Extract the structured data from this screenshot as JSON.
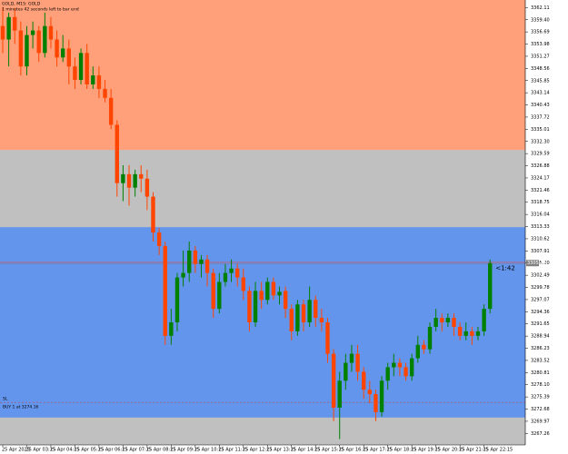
{
  "chart_data": {
    "type": "candlestick",
    "title": "GOLD, M15: GOLD",
    "subtitle": "1 minutes 42 seconds left to bar end",
    "countdown": "<1:42",
    "categories": [
      "25 Apr 2025",
      null,
      null,
      null,
      "25 Apr 03:15",
      null,
      null,
      null,
      "25 Apr 04:15",
      null,
      null,
      null,
      "25 Apr 05:15",
      null,
      null,
      null,
      "25 Apr 06:15",
      null,
      null,
      null,
      "25 Apr 07:15",
      null,
      null,
      null,
      "25 Apr 08:15",
      null,
      null,
      null,
      "25 Apr 09:15",
      null,
      null,
      null,
      "25 Apr 10:15",
      null,
      null,
      null,
      "25 Apr 11:15",
      null,
      null,
      null,
      "25 Apr 12:15",
      null,
      null,
      null,
      "25 Apr 13:15",
      null,
      null,
      null,
      "25 Apr 14:15",
      null,
      null,
      null,
      "25 Apr 15:15",
      null,
      null,
      null,
      "25 Apr 16:15",
      null,
      null,
      null,
      "25 Apr 17:15",
      null,
      null,
      null,
      "25 Apr 18:15",
      null,
      null,
      null,
      "25 Apr 19:15",
      null,
      null,
      null,
      "25 Apr 20:15",
      null,
      null,
      null,
      "25 Apr 21:15",
      null,
      null,
      null,
      "25 Apr 22:15",
      null
    ],
    "open": [
      3358,
      3355,
      3360,
      3357,
      3349,
      3356,
      3357,
      3352,
      3358,
      3355,
      3351,
      3353,
      3349,
      3346,
      3352,
      3345,
      3347,
      3344,
      3342,
      3336,
      3323,
      3325,
      3322,
      3325,
      3324,
      3320,
      3312,
      3309,
      3289,
      3292,
      3302,
      3303,
      3308,
      3305,
      3306,
      3303,
      3295,
      3301,
      3303,
      3304,
      3302,
      3299,
      3292,
      3299,
      3297,
      3301,
      3298,
      3299,
      3295,
      3290,
      3296,
      3292,
      3297,
      3293,
      3292,
      3285,
      3273,
      3279,
      3283,
      3285,
      3281,
      3277,
      3276,
      3272,
      3279,
      3282,
      3283,
      3282,
      3280,
      3284,
      3287,
      3286,
      3291,
      3293,
      3292,
      3293,
      3291,
      3289,
      3290,
      3289,
      3290,
      3295
    ],
    "close": [
      3355,
      3360,
      3357,
      3349,
      3356,
      3357,
      3352,
      3358,
      3355,
      3351,
      3353,
      3349,
      3346,
      3352,
      3345,
      3347,
      3344,
      3342,
      3336,
      3323,
      3325,
      3322,
      3325,
      3324,
      3320,
      3312,
      3309,
      3289,
      3292,
      3302,
      3303,
      3308,
      3305,
      3306,
      3303,
      3295,
      3301,
      3303,
      3304,
      3302,
      3299,
      3292,
      3299,
      3297,
      3301,
      3298,
      3298.8,
      3295,
      3290,
      3296,
      3292,
      3297,
      3293,
      3292,
      3285,
      3273,
      3279,
      3283,
      3285,
      3281,
      3277,
      3276,
      3272,
      3279,
      3282,
      3283,
      3282,
      3280,
      3284,
      3287,
      3286,
      3291,
      3293,
      3292,
      3293,
      3291,
      3289,
      3290,
      3289,
      3290,
      3295,
      3305.2
    ],
    "high": [
      3362,
      3361,
      3362,
      3359,
      3358,
      3359,
      3358,
      3361,
      3360,
      3357,
      3356,
      3355,
      3351,
      3353,
      3354,
      3349,
      3349,
      3346,
      3344,
      3337,
      3327,
      3327,
      3326,
      3327,
      3326,
      3321,
      3313,
      3310,
      3295,
      3303,
      3308,
      3310,
      3309,
      3307,
      3307,
      3304,
      3303,
      3305,
      3306,
      3305,
      3304,
      3300,
      3301,
      3301,
      3302,
      3302,
      3300,
      3300,
      3296,
      3297,
      3297,
      3300,
      3298,
      3295,
      3293,
      3286,
      3281,
      3285,
      3287,
      3287,
      3282,
      3279,
      3277,
      3280,
      3283,
      3285,
      3284,
      3283,
      3285,
      3289,
      3288,
      3292,
      3295,
      3294,
      3294,
      3294,
      3292,
      3292,
      3291,
      3291,
      3296,
      3306
    ],
    "low": [
      3352,
      3349,
      3354,
      3347,
      3347,
      3353,
      3350,
      3351,
      3353,
      3349,
      3350,
      3345,
      3344,
      3345,
      3344,
      3344,
      3342,
      3341,
      3335,
      3320,
      3319,
      3318,
      3320,
      3321,
      3317,
      3310,
      3307,
      3287,
      3287,
      3290,
      3300,
      3301,
      3303,
      3302,
      3300,
      3293,
      3294,
      3300,
      3301,
      3300,
      3297,
      3290,
      3291,
      3295,
      3296,
      3297,
      3296,
      3293,
      3288,
      3289,
      3290,
      3291,
      3291,
      3290,
      3283,
      3270,
      3266,
      3277,
      3281,
      3279,
      3275,
      3274,
      3270,
      3271,
      3277,
      3280,
      3280,
      3279,
      3279,
      3283,
      3285,
      3285,
      3290,
      3290,
      3291,
      3289,
      3288,
      3288,
      3287,
      3288,
      3289,
      3294
    ],
    "up_color": "#008000",
    "down_color": "#ff4500",
    "background": "#c0c0c0",
    "zones": [
      {
        "from": 3330.4,
        "to": 3363.8,
        "color": "#ffa07a"
      },
      {
        "from": 3270.8,
        "to": 3313.2,
        "color": "#6495ed"
      }
    ],
    "ylim": [
      3264.7,
      3363.8
    ],
    "yticks": [
      3267.26,
      3269.97,
      3272.68,
      3275.39,
      {
        "value": 3278.1,
        "label": "3278.10"
      },
      3280.81,
      3283.52,
      3286.23,
      3288.94,
      3291.65,
      3294.36,
      3297.07,
      3299.78,
      3302.49,
      {
        "value": 3305.2,
        "label": "3305.20"
      },
      3307.91,
      3310.62,
      3313.33,
      3316.04,
      3318.75,
      3321.46,
      3324.17,
      3326.88,
      3329.59,
      {
        "value": 3332.3,
        "label": "3332.30"
      },
      3335.01,
      3337.72,
      3340.43,
      3343.14,
      3345.85,
      3348.56,
      3351.27,
      3353.98,
      3356.69,
      {
        "value": 3359.4,
        "label": "3359.40"
      },
      3362.11
    ],
    "current_price": {
      "value": 3305.2,
      "label": "3305.20"
    },
    "order_line": {
      "value": 3274.16,
      "label": "BUY 1 at 3274.16",
      "tag": "SL"
    }
  }
}
